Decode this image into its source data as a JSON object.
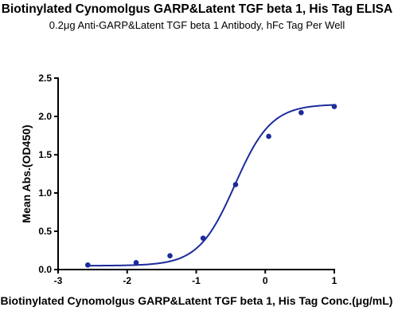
{
  "chart_data": {
    "type": "scatter",
    "title": "Biotinylated Cynomolgus GARP&Latent TGF beta 1, His Tag ELISA",
    "subtitle": "0.2μg Anti-GARP&Latent TGF beta 1 Antibody, hFc Tag Per Well",
    "xlabel": "Biotinylated Cynomolgus GARP&Latent TGF beta 1, His Tag Conc.(μg/mL)",
    "ylabel": "Mean Abs.(OD450)",
    "xlim": [
      -3,
      1
    ],
    "ylim": [
      0,
      2.5
    ],
    "xticks": [
      "-3",
      "-2",
      "-1",
      "0",
      "1"
    ],
    "yticks": [
      "0.0",
      "0.5",
      "1.0",
      "1.5",
      "2.0",
      "2.5"
    ],
    "series": [
      {
        "x": [
          -2.57,
          -1.87,
          -1.38,
          -0.9,
          -0.43,
          0.05,
          0.52,
          1.0
        ],
        "y": [
          0.06,
          0.09,
          0.18,
          0.41,
          1.11,
          1.74,
          2.05,
          2.13
        ],
        "fit": "4PL",
        "color": "#1c2b9b"
      }
    ],
    "grid": false
  }
}
